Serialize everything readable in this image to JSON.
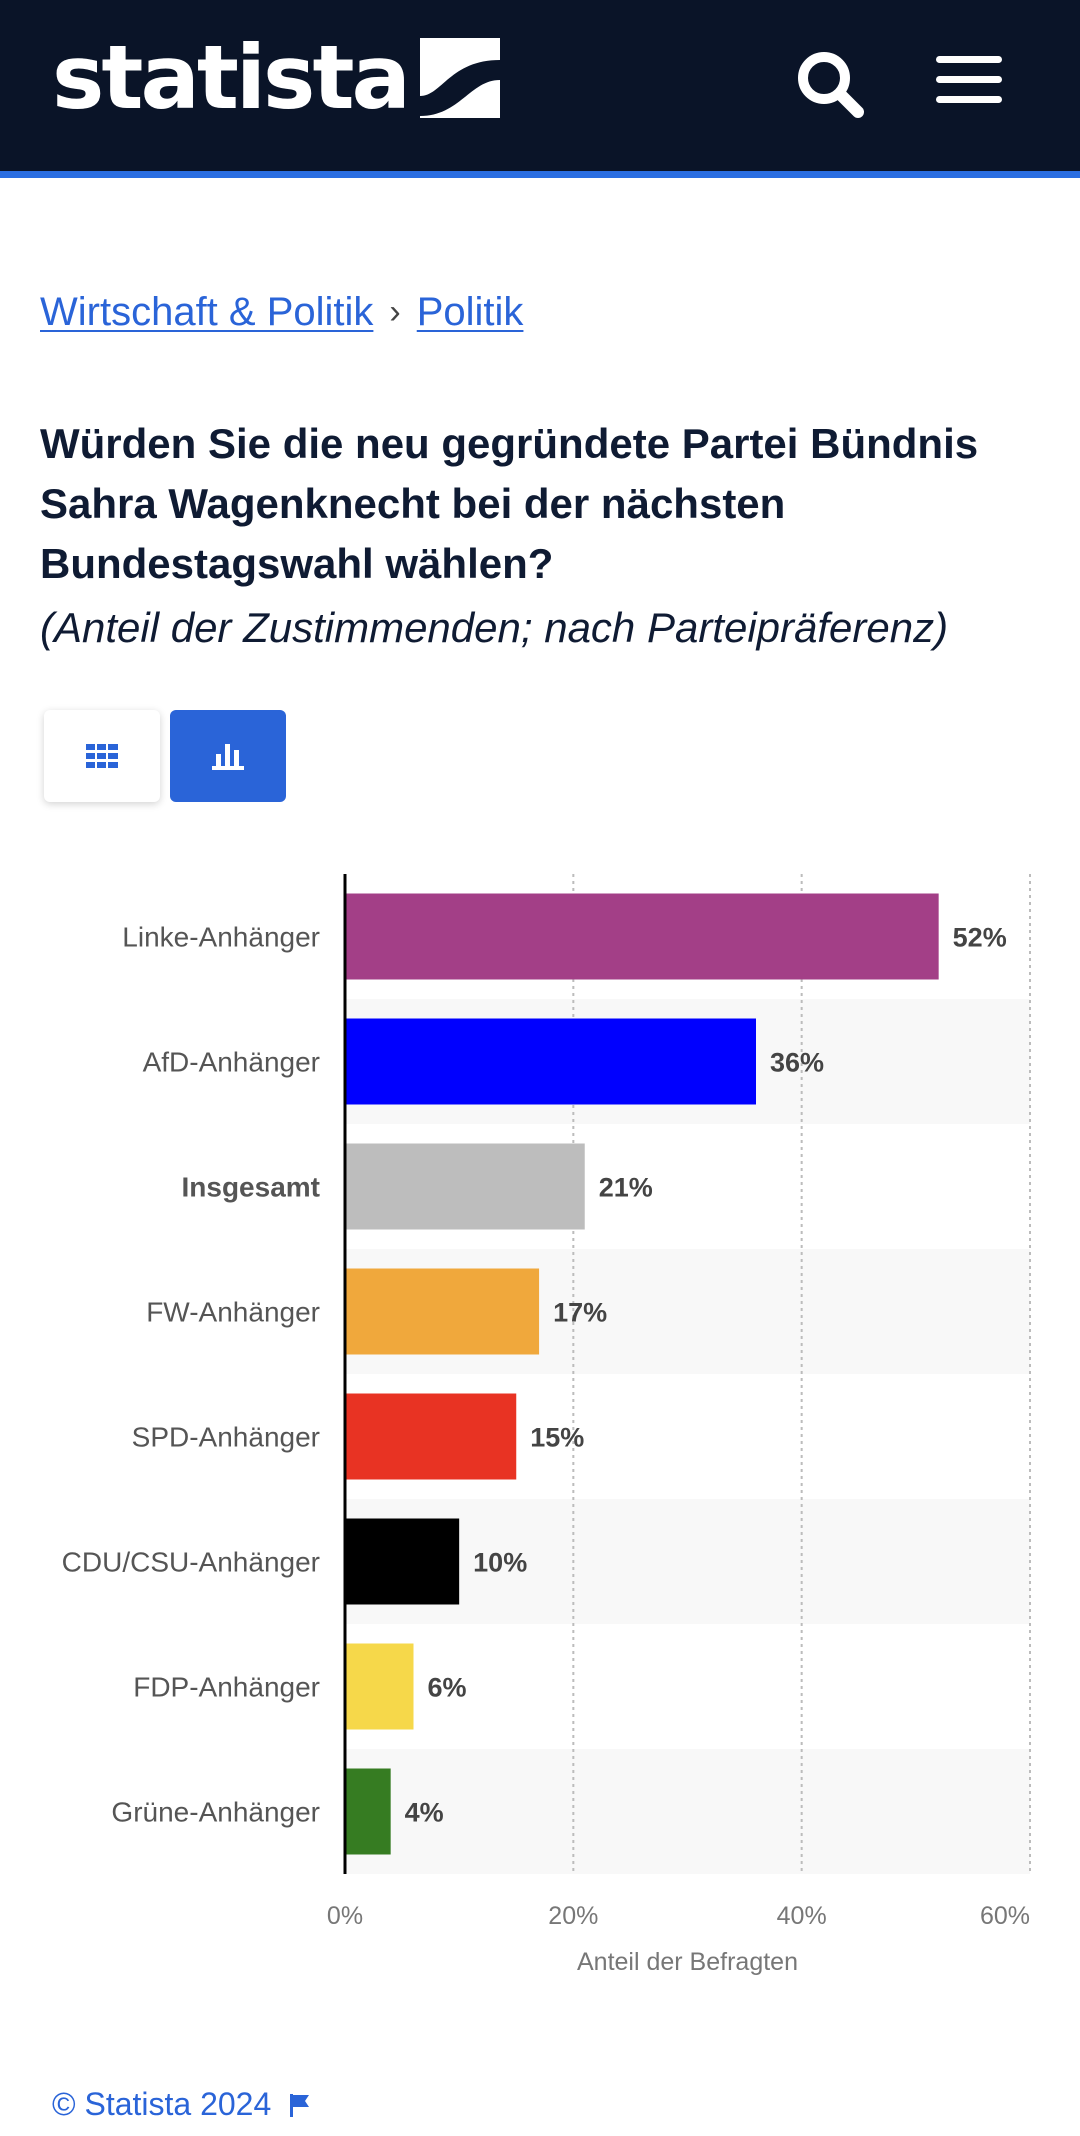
{
  "header": {
    "logo_text": "statista",
    "search_icon": "search-icon",
    "menu_icon": "hamburger-menu-icon",
    "background_color": "#0a1428",
    "accent_color": "#2a6ee2"
  },
  "breadcrumb": {
    "items": [
      "Wirtschaft & Politik",
      "Politik"
    ],
    "separator": "›"
  },
  "title": "Würden Sie die neu gegründete Partei Bündnis Sahra Wagenknecht bei der nächsten Bundestagswahl wählen?",
  "subtitle": "(Anteil der Zustimmenden; nach Parteipräferenz)",
  "view_toggle": {
    "options": [
      "table-view",
      "chart-view"
    ],
    "selected": "chart-view"
  },
  "chart_data": {
    "type": "bar",
    "orientation": "horizontal",
    "categories": [
      "Linke-Anhänger",
      "AfD-Anhänger",
      "Insgesamt",
      "FW-Anhänger",
      "SPD-Anhänger",
      "CDU/CSU-Anhänger",
      "FDP-Anhänger",
      "Grüne-Anhänger"
    ],
    "values": [
      52,
      36,
      21,
      17,
      15,
      10,
      6,
      4
    ],
    "value_labels": [
      "52%",
      "36%",
      "21%",
      "17%",
      "15%",
      "10%",
      "6%",
      "4%"
    ],
    "colors": [
      "#a33f87",
      "#0000ff",
      "#bdbdbd",
      "#f0a83c",
      "#e83323",
      "#000000",
      "#f6d84a",
      "#367c22"
    ],
    "highlighted_category": "Insgesamt",
    "xlabel": "Anteil der Befragten",
    "xlim": [
      0,
      60
    ],
    "x_ticks": [
      "0%",
      "20%",
      "40%",
      "60%"
    ],
    "x_tick_values": [
      0,
      20,
      40,
      60
    ],
    "grid": true
  },
  "footer": {
    "copyright": "© Statista 2024",
    "flag_icon": "flag-icon"
  }
}
